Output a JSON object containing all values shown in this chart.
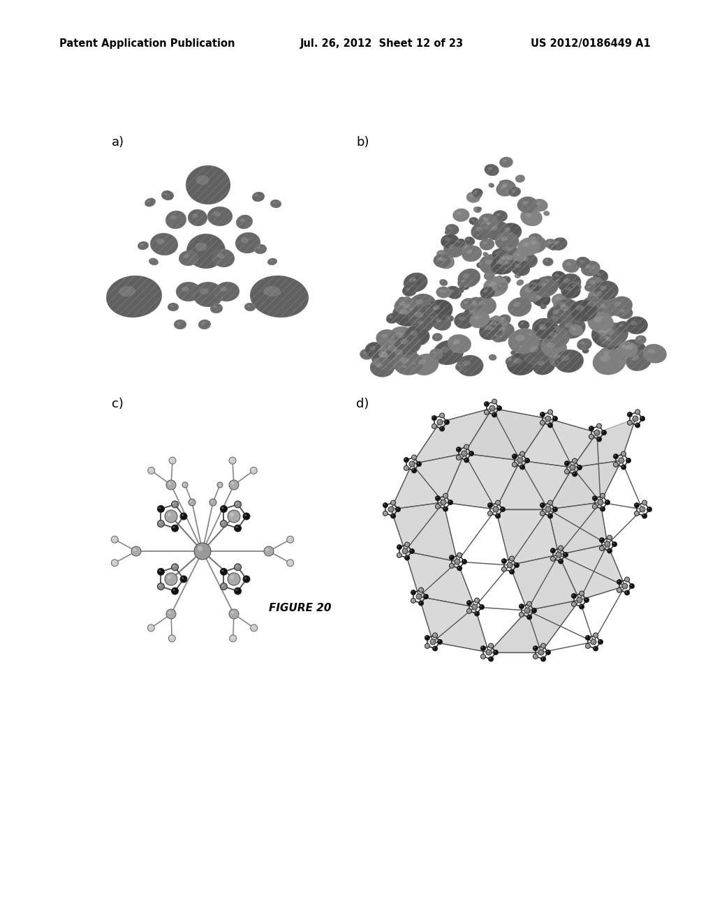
{
  "header_left": "Patent Application Publication",
  "header_mid": "Jul. 26, 2012  Sheet 12 of 23",
  "header_right": "US 2012/0186449 A1",
  "figure_label": "FIGURE 20",
  "panel_labels": [
    "a)",
    "b)",
    "c)",
    "d)"
  ],
  "background_color": "#ffffff",
  "text_color": "#000000",
  "header_fontsize": 10.5,
  "label_fontsize": 13,
  "figure_label_fontsize": 11
}
